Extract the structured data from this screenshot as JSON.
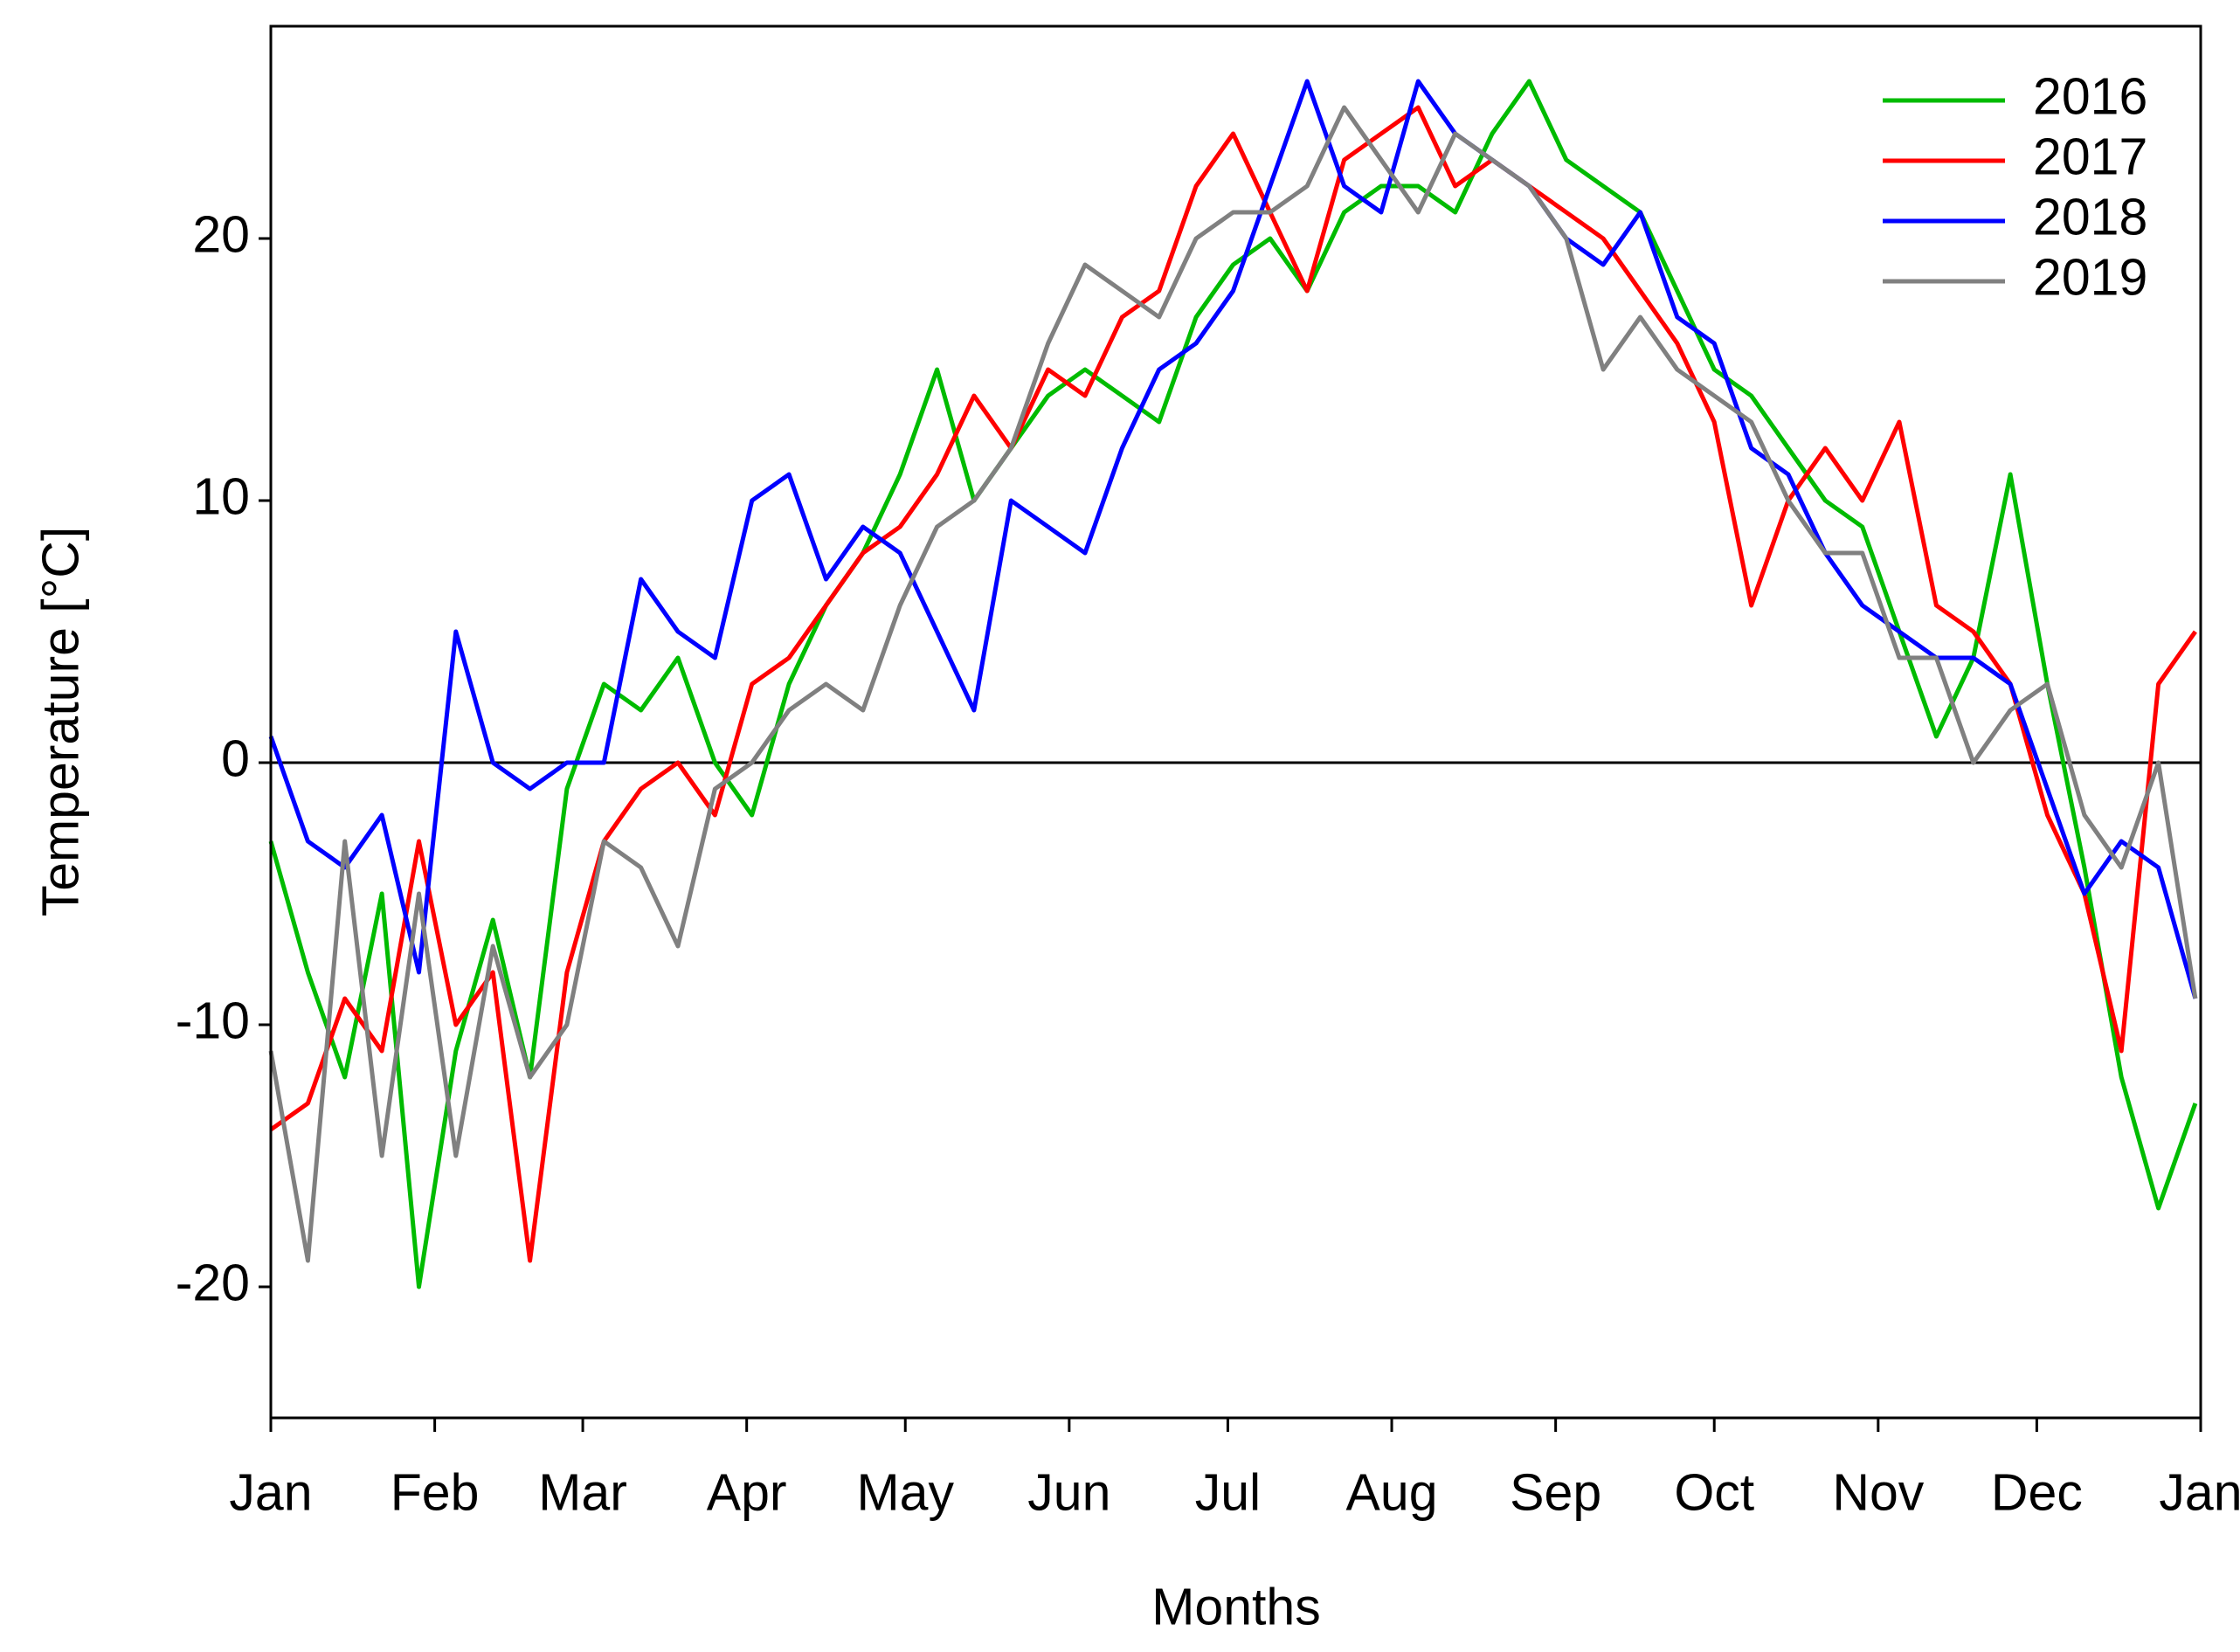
{
  "chart_data": {
    "type": "line",
    "x_label": "Months",
    "y_label": "Temperature [°C]",
    "x": [
      0,
      7,
      14,
      21,
      28,
      35,
      42,
      49,
      56,
      63,
      70,
      77,
      84,
      91,
      98,
      105,
      112,
      119,
      126,
      133,
      140,
      147,
      154,
      161,
      168,
      175,
      182,
      189,
      196,
      203,
      210,
      217,
      224,
      231,
      238,
      245,
      252,
      259,
      266,
      273,
      280,
      287,
      294,
      301,
      308,
      315,
      322,
      329,
      336,
      343,
      350,
      357,
      364
    ],
    "series": [
      {
        "name": "2016",
        "color": "#00bb00",
        "values": [
          -3,
          -8,
          -12,
          -5,
          -20,
          -11,
          -6,
          -12,
          -1,
          3,
          2,
          4,
          0,
          -2,
          3,
          6,
          8,
          11,
          15,
          10,
          12,
          14,
          15,
          14,
          13,
          17,
          19,
          20,
          18,
          21,
          22,
          22,
          21,
          24,
          26,
          23,
          22,
          21,
          18,
          15,
          14,
          12,
          10,
          9,
          5,
          1,
          4,
          11,
          3,
          -4,
          -12,
          -17,
          -13
        ]
      },
      {
        "name": "2017",
        "color": "#ff0000",
        "values": [
          -14,
          -13,
          -9,
          -11,
          -3,
          -10,
          -8,
          -19,
          -8,
          -3,
          -1,
          0,
          -2,
          3,
          4,
          6,
          8,
          9,
          11,
          14,
          12,
          15,
          14,
          17,
          18,
          22,
          24,
          21,
          18,
          23,
          24,
          25,
          22,
          23,
          22,
          21,
          20,
          18,
          16,
          13,
          6,
          10,
          12,
          10,
          13,
          6,
          5,
          3,
          -2,
          -5,
          -11,
          3,
          5
        ]
      },
      {
        "name": "2018",
        "color": "#0000ff",
        "values": [
          1,
          -3,
          -4,
          -2,
          -8,
          5,
          0,
          -1,
          0,
          0,
          7,
          5,
          4,
          10,
          11,
          7,
          9,
          8,
          5,
          2,
          10,
          9,
          8,
          12,
          15,
          16,
          18,
          22,
          26,
          22,
          21,
          26,
          24,
          23,
          22,
          20,
          19,
          21,
          17,
          16,
          12,
          11,
          8,
          6,
          5,
          4,
          4,
          3,
          -1,
          -5,
          -3,
          -4,
          -9
        ]
      },
      {
        "name": "2019",
        "color": "#808080",
        "values": [
          -11,
          -19,
          -3,
          -15,
          -5,
          -15,
          -7,
          -12,
          -10,
          -3,
          -4,
          -7,
          -1,
          0,
          2,
          3,
          2,
          6,
          9,
          10,
          12,
          16,
          19,
          18,
          17,
          20,
          21,
          21,
          22,
          25,
          23,
          21,
          24,
          23,
          22,
          20,
          15,
          17,
          15,
          14,
          13,
          10,
          8,
          8,
          4,
          4,
          0,
          2,
          3,
          -2,
          -4,
          0,
          -9
        ]
      }
    ],
    "xlim": [
      0,
      365
    ],
    "xticks": [
      {
        "value": 0,
        "label": "Jan"
      },
      {
        "value": 31,
        "label": "Feb"
      },
      {
        "value": 59,
        "label": "Mar"
      },
      {
        "value": 90,
        "label": "Apr"
      },
      {
        "value": 120,
        "label": "May"
      },
      {
        "value": 151,
        "label": "Jun"
      },
      {
        "value": 181,
        "label": "Jul"
      },
      {
        "value": 212,
        "label": "Aug"
      },
      {
        "value": 243,
        "label": "Sep"
      },
      {
        "value": 273,
        "label": "Oct"
      },
      {
        "value": 304,
        "label": "Nov"
      },
      {
        "value": 334,
        "label": "Dec"
      },
      {
        "value": 365,
        "label": "Jan"
      }
    ],
    "ylim": [
      -25,
      28.1
    ],
    "yticks": [
      -20,
      -10,
      0,
      10,
      20
    ],
    "legend": "upper right",
    "grid": false
  }
}
